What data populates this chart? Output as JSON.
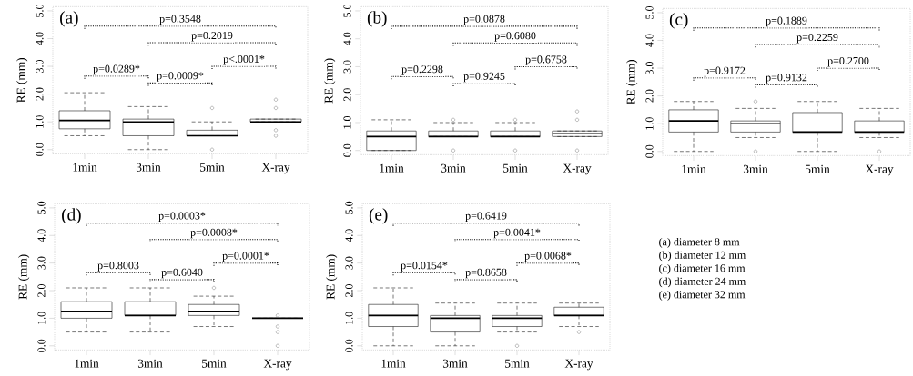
{
  "chart_data": [
    {
      "type": "box",
      "title": "(a)",
      "ylabel": "RE (mm)",
      "categories": [
        "1min",
        "3min",
        "5min",
        "X-ray"
      ],
      "ylim": [
        -0.15,
        5.15
      ],
      "yticks": [
        {
          "value": 0,
          "label": "0.0"
        },
        {
          "value": 1,
          "label": "1.0"
        },
        {
          "value": 2,
          "label": "2.0"
        },
        {
          "value": 3,
          "label": "3.0"
        },
        {
          "value": 4,
          "label": "4.0"
        },
        {
          "value": 5,
          "label": "5.0"
        }
      ],
      "boxes": [
        {
          "low": 0.5,
          "q1": 0.75,
          "median": 1.05,
          "q3": 1.4,
          "high": 2.05
        },
        {
          "low": 0.0,
          "q1": 0.5,
          "median": 1.0,
          "q3": 1.1,
          "high": 1.55
        },
        {
          "low": 0.5,
          "q1": 0.5,
          "median": 0.5,
          "q3": 0.7,
          "high": 1.0,
          "outliers": [
            1.5,
            0.0
          ]
        },
        {
          "low": 1.0,
          "q1": 1.0,
          "median": 1.0,
          "q3": 1.1,
          "high": 1.1,
          "outliers": [
            1.8,
            1.5,
            0.7,
            0.5
          ]
        }
      ],
      "annotations": [
        "p=0.3548",
        "p=0.2019",
        "p<.0001*",
        "p=0.0289*",
        "p=0.0009*"
      ]
    },
    {
      "type": "box",
      "title": "(b)",
      "ylabel": "RE (mm)",
      "categories": [
        "1min",
        "3min",
        "5min",
        "X-ray"
      ],
      "ylim": [
        -0.15,
        5.15
      ],
      "yticks": [
        {
          "value": 0,
          "label": "0.0"
        },
        {
          "value": 1,
          "label": "1.0"
        },
        {
          "value": 2,
          "label": "2.0"
        },
        {
          "value": 3,
          "label": "3.0"
        },
        {
          "value": 4,
          "label": "4.0"
        },
        {
          "value": 5,
          "label": "5.0"
        }
      ],
      "boxes": [
        {
          "low": 0.0,
          "q1": 0.0,
          "median": 0.5,
          "q3": 0.7,
          "high": 1.1
        },
        {
          "low": 0.5,
          "q1": 0.5,
          "median": 0.5,
          "q3": 0.7,
          "high": 1.0,
          "outliers": [
            1.1,
            0.0
          ]
        },
        {
          "low": 0.5,
          "q1": 0.5,
          "median": 0.5,
          "q3": 0.7,
          "high": 1.0,
          "outliers": [
            1.1,
            0.0
          ]
        },
        {
          "low": 0.5,
          "q1": 0.5,
          "median": 0.6,
          "q3": 0.7,
          "high": 0.7,
          "outliers": [
            1.4,
            1.1,
            0.0
          ]
        }
      ],
      "annotations": [
        "p=0.0878",
        "p=0.6080",
        "p=0.6758",
        "p=0.2298",
        "p=0.9245"
      ]
    },
    {
      "type": "box",
      "title": "(c)",
      "ylabel": "RE (mm)",
      "categories": [
        "1min",
        "3min",
        "5min",
        "X-ray"
      ],
      "ylim": [
        -0.15,
        5.15
      ],
      "yticks": [
        {
          "value": 0,
          "label": "0.0"
        },
        {
          "value": 1,
          "label": "1.0"
        },
        {
          "value": 2,
          "label": "2.0"
        },
        {
          "value": 3,
          "label": "3.0"
        },
        {
          "value": 4,
          "label": "4.0"
        },
        {
          "value": 5,
          "label": "5.0"
        }
      ],
      "boxes": [
        {
          "low": 0.0,
          "q1": 0.7,
          "median": 1.1,
          "q3": 1.5,
          "high": 1.8
        },
        {
          "low": 0.5,
          "q1": 0.7,
          "median": 1.0,
          "q3": 1.1,
          "high": 1.55,
          "outliers": [
            1.8,
            0.0
          ]
        },
        {
          "low": 0.0,
          "q1": 0.7,
          "median": 0.7,
          "q3": 1.4,
          "high": 1.8
        },
        {
          "low": 0.5,
          "q1": 0.7,
          "median": 0.7,
          "q3": 1.1,
          "high": 1.55,
          "outliers": [
            0.0
          ]
        }
      ],
      "annotations": [
        "p=0.1889",
        "p=0.2259",
        "p=0.2700",
        "p=0.9172",
        "p=0.9132"
      ]
    },
    {
      "type": "box",
      "title": "(d)",
      "ylabel": "RE (mm)",
      "categories": [
        "1min",
        "3min",
        "5min",
        "X-ray"
      ],
      "ylim": [
        -0.15,
        5.15
      ],
      "yticks": [
        {
          "value": 0,
          "label": "0.0"
        },
        {
          "value": 1,
          "label": "1.0"
        },
        {
          "value": 2,
          "label": "2.0"
        },
        {
          "value": 3,
          "label": "3.0"
        },
        {
          "value": 4,
          "label": "4.0"
        },
        {
          "value": 5,
          "label": "5.0"
        }
      ],
      "boxes": [
        {
          "low": 0.5,
          "q1": 1.0,
          "median": 1.25,
          "q3": 1.6,
          "high": 2.1
        },
        {
          "low": 0.5,
          "q1": 1.1,
          "median": 1.1,
          "q3": 1.6,
          "high": 2.1
        },
        {
          "low": 0.7,
          "q1": 1.1,
          "median": 1.25,
          "q3": 1.5,
          "high": 1.8,
          "outliers": [
            2.1
          ]
        },
        {
          "low": 1.0,
          "q1": 1.0,
          "median": 1.0,
          "q3": 1.0,
          "high": 1.0,
          "outliers": [
            1.1,
            0.7,
            0.5,
            0.0
          ]
        }
      ],
      "annotations": [
        "p=0.0003*",
        "p=0.0008*",
        "p=0.0001*",
        "p=0.8003",
        "p=0.6040"
      ]
    },
    {
      "type": "box",
      "title": "(e)",
      "ylabel": "RE (mm)",
      "categories": [
        "1min",
        "3min",
        "5min",
        "X-ray"
      ],
      "ylim": [
        -0.15,
        5.15
      ],
      "yticks": [
        {
          "value": 0,
          "label": "0.0"
        },
        {
          "value": 1,
          "label": "1.0"
        },
        {
          "value": 2,
          "label": "2.0"
        },
        {
          "value": 3,
          "label": "3.0"
        },
        {
          "value": 4,
          "label": "4.0"
        },
        {
          "value": 5,
          "label": "5.0"
        }
      ],
      "boxes": [
        {
          "low": 0.0,
          "q1": 0.7,
          "median": 1.1,
          "q3": 1.5,
          "high": 2.1
        },
        {
          "low": 0.0,
          "q1": 0.5,
          "median": 1.0,
          "q3": 1.1,
          "high": 1.55
        },
        {
          "low": 0.5,
          "q1": 0.7,
          "median": 1.0,
          "q3": 1.1,
          "high": 1.55,
          "outliers": [
            0.0
          ]
        },
        {
          "low": 0.7,
          "q1": 1.1,
          "median": 1.1,
          "q3": 1.4,
          "high": 1.55,
          "outliers": [
            0.5
          ]
        }
      ],
      "annotations": [
        "p=0.6419",
        "p=0.0041*",
        "p=0.0068*",
        "p=0.0154*",
        "p=0.8658"
      ]
    },
    {
      "type": "other",
      "annotations": [
        "(a)  diameter  8 mm",
        "(b)  diameter  12 mm",
        "(c)  diameter  16 mm",
        "(d)  diameter  24 mm",
        "(e)  diameter  32 mm"
      ]
    }
  ]
}
